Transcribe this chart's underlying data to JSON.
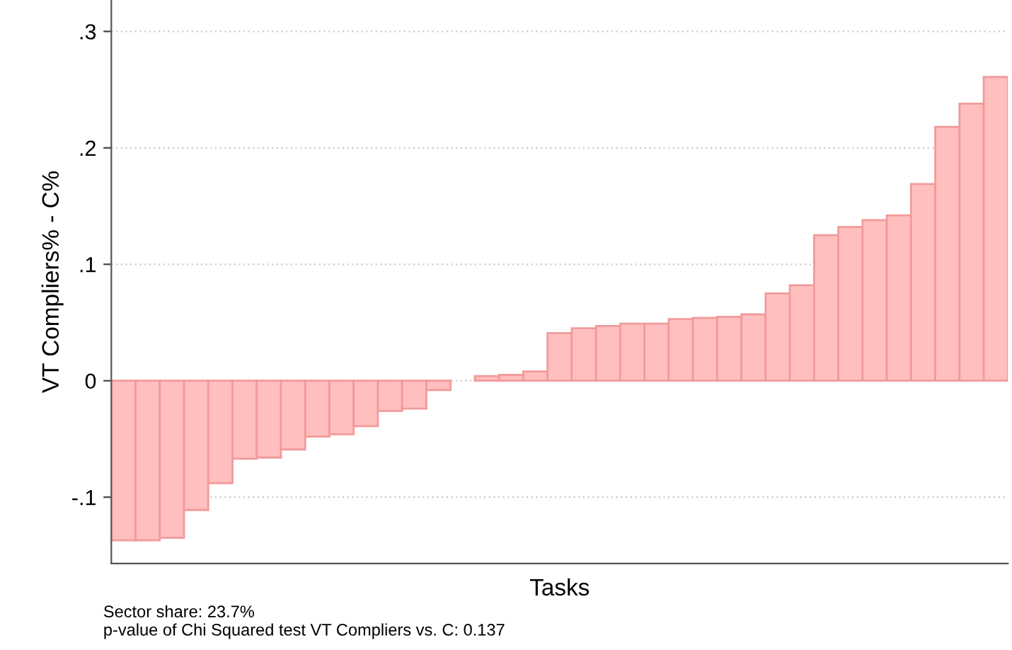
{
  "chart_data": {
    "type": "bar",
    "categories": [
      null,
      null,
      null,
      null,
      null,
      null,
      null,
      null,
      null,
      null,
      null,
      null,
      null,
      null,
      null,
      null,
      null,
      null,
      null,
      null,
      null,
      null,
      null,
      null,
      null,
      null,
      null,
      null,
      null,
      null,
      null,
      null,
      null,
      null,
      null,
      null,
      null
    ],
    "values": [
      -0.137,
      -0.137,
      -0.135,
      -0.111,
      -0.088,
      -0.067,
      -0.066,
      -0.059,
      -0.048,
      -0.046,
      -0.039,
      -0.026,
      -0.024,
      -0.008,
      null,
      0.004,
      0.005,
      0.008,
      0.041,
      0.045,
      0.047,
      0.049,
      0.049,
      0.053,
      0.054,
      0.055,
      0.057,
      0.075,
      0.082,
      0.125,
      0.132,
      0.138,
      0.142,
      0.169,
      0.218,
      0.238,
      0.261
    ],
    "color": "#ffbfbf",
    "xlabel": "Tasks",
    "ylabel": "VT Compliers% - C%",
    "ylim": [
      -0.157,
      0.327
    ],
    "yticks": [
      {
        "value": -0.1,
        "label": "-.1"
      },
      {
        "value": 0,
        "label": "0"
      },
      {
        "value": 0.1,
        "label": ".1"
      },
      {
        "value": 0.2,
        "label": ".2"
      },
      {
        "value": 0.3,
        "label": ".3"
      }
    ],
    "grid": "y",
    "annotations": [
      "Sector share: 23.7%",
      "p-value of Chi Squared test VT Compliers vs. C: 0.137"
    ]
  }
}
